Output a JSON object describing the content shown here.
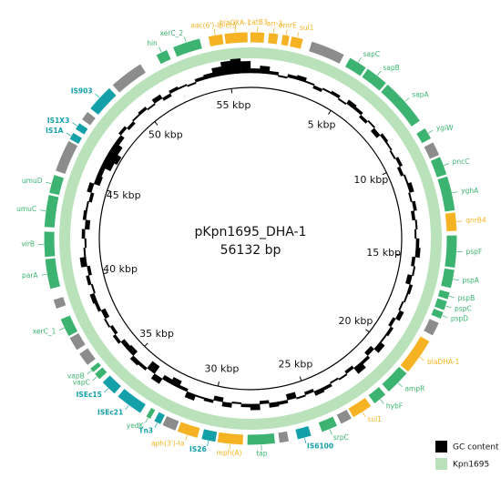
{
  "chart_data": {
    "type": "circular-map",
    "title": "pKpn1695_DHA-1",
    "subtitle": "56132 bp",
    "ring": {
      "lim": [
        0,
        56.132
      ],
      "ticks": [
        {
          "value": 5,
          "label": "5 kbp"
        },
        {
          "value": 10,
          "label": "10 kbp"
        },
        {
          "value": 15,
          "label": "15 kbp"
        },
        {
          "value": 20,
          "label": "20 kbp"
        },
        {
          "value": 25,
          "label": "25 kbp"
        },
        {
          "value": 30,
          "label": "30 kbp"
        },
        {
          "value": 35,
          "label": "35 kbp"
        },
        {
          "value": 40,
          "label": "40 kbp"
        },
        {
          "value": 45,
          "label": "45 kbp"
        },
        {
          "value": 50,
          "label": "50 kbp"
        },
        {
          "value": 55,
          "label": "55 kbp"
        }
      ]
    },
    "gc_content": {
      "name": "GC content",
      "color": "#000000",
      "lim": [
        -12,
        12
      ],
      "values": [
        3,
        5,
        2,
        -1,
        2,
        3,
        1,
        -2,
        1,
        2,
        -1,
        3,
        2,
        -2,
        1,
        -3,
        2,
        1,
        -1,
        2,
        -2,
        1,
        3,
        -1,
        2,
        -2,
        1,
        -1,
        2,
        3,
        -2,
        1,
        -3,
        2,
        1,
        -1,
        3,
        -2,
        2,
        1,
        4,
        -3,
        2,
        5,
        -2,
        1,
        -1,
        2,
        3,
        -2,
        1,
        -4,
        2,
        3,
        -2,
        4,
        2,
        -1,
        3,
        -3,
        2,
        1,
        4,
        -2,
        -5,
        -3,
        4,
        -6,
        2,
        3,
        -4,
        -3,
        2,
        -2,
        1,
        -3,
        2,
        3,
        -1,
        2,
        -2,
        4,
        1,
        -1,
        2,
        -3,
        2,
        1,
        -2,
        3,
        -4,
        -3,
        -7,
        -9,
        -6,
        -3,
        2,
        -2,
        1,
        2,
        -1,
        3,
        -2,
        2,
        1,
        -1,
        2,
        3,
        6,
        9,
        10,
        8
      ]
    },
    "backbone": {
      "name": "Kpn1695",
      "color": "#b9e2bb"
    },
    "genes": [
      {
        "label": "hin",
        "start": 51.9,
        "end": 52.4,
        "color": "#3cb371"
      },
      {
        "label": "xerC_2",
        "start": 52.7,
        "end": 53.9,
        "color": "#3cb371"
      },
      {
        "label": "aac(6')-Ib-cr5",
        "start": 54.3,
        "end": 54.9,
        "color": "#f5b324"
      },
      {
        "label": "blaOXA-1",
        "start": 55.0,
        "end": 56.0,
        "color": "#f5b324"
      },
      {
        "label": "catB3",
        "start": 0.0,
        "end": 0.6,
        "color": "#f5b324"
      },
      {
        "label": "arr-3",
        "start": 0.8,
        "end": 1.2,
        "color": "#f5b324"
      },
      {
        "label": "emrE",
        "start": 1.4,
        "end": 1.7,
        "color": "#f5b324"
      },
      {
        "label": "sul1",
        "start": 1.8,
        "end": 2.3,
        "color": "#f5b324"
      },
      {
        "label": null,
        "start": 2.7,
        "end": 4.2,
        "color": "#8c8c8c"
      },
      {
        "label": "sapC",
        "start": 4.5,
        "end": 5.3,
        "color": "#3cb371"
      },
      {
        "label": "sapB",
        "start": 5.4,
        "end": 6.4,
        "color": "#3cb371"
      },
      {
        "label": "sapA",
        "start": 6.5,
        "end": 8.6,
        "color": "#3cb371"
      },
      {
        "label": "ygiW",
        "start": 9.0,
        "end": 9.5,
        "color": "#3cb371"
      },
      {
        "label": null,
        "start": 9.7,
        "end": 10.3,
        "color": "#8c8c8c"
      },
      {
        "label": "pncC",
        "start": 10.4,
        "end": 11.2,
        "color": "#3cb371"
      },
      {
        "label": "yghA",
        "start": 11.3,
        "end": 12.8,
        "color": "#3cb371"
      },
      {
        "label": "qnrB4",
        "start": 12.9,
        "end": 13.7,
        "color": "#f5b324"
      },
      {
        "label": "pspF",
        "start": 13.9,
        "end": 15.3,
        "color": "#3cb371"
      },
      {
        "label": "pspA",
        "start": 15.4,
        "end": 16.2,
        "color": "#3cb371"
      },
      {
        "label": "pspB",
        "start": 16.4,
        "end": 16.7,
        "color": "#3cb371"
      },
      {
        "label": "pspC",
        "start": 16.8,
        "end": 17.2,
        "color": "#3cb371"
      },
      {
        "label": "pspD",
        "start": 17.3,
        "end": 17.6,
        "color": "#3cb371"
      },
      {
        "label": null,
        "start": 17.8,
        "end": 18.4,
        "color": "#8c8c8c"
      },
      {
        "label": "blaDHA-1",
        "start": 18.7,
        "end": 20.3,
        "color": "#f5b324"
      },
      {
        "label": "ampR",
        "start": 20.4,
        "end": 21.5,
        "color": "#3cb371"
      },
      {
        "label": "hybF",
        "start": 21.7,
        "end": 22.3,
        "color": "#3cb371"
      },
      {
        "label": "sul1",
        "start": 22.5,
        "end": 23.4,
        "color": "#f5b324"
      },
      {
        "label": null,
        "start": 23.5,
        "end": 24.0,
        "color": "#8c8c8c"
      },
      {
        "label": "srpC",
        "start": 24.2,
        "end": 24.9,
        "color": "#3cb371"
      },
      {
        "label": "IS6100",
        "start": 25.4,
        "end": 26.0,
        "color": "#13a0a8"
      },
      {
        "label": null,
        "start": 26.4,
        "end": 26.8,
        "color": "#8c8c8c"
      },
      {
        "label": "tap",
        "start": 27.0,
        "end": 28.2,
        "color": "#3cb371"
      },
      {
        "label": "mph(A)",
        "start": 28.4,
        "end": 29.5,
        "color": "#f5b324"
      },
      {
        "label": "IS26",
        "start": 29.6,
        "end": 30.2,
        "color": "#13a0a8"
      },
      {
        "label": "aph(3')-Ia",
        "start": 30.4,
        "end": 31.3,
        "color": "#f5b324"
      },
      {
        "label": null,
        "start": 31.4,
        "end": 32.0,
        "color": "#8c8c8c"
      },
      {
        "label": "Tn3",
        "start": 32.1,
        "end": 32.4,
        "color": "#13a0a8"
      },
      {
        "label": "yedK",
        "start": 32.6,
        "end": 32.8,
        "color": "#3cb371"
      },
      {
        "label": "ISEc21",
        "start": 33.1,
        "end": 34.3,
        "color": "#13a0a8"
      },
      {
        "label": "ISEc15",
        "start": 34.5,
        "end": 35.2,
        "color": "#13a0a8"
      },
      {
        "label": "vapC",
        "start": 35.4,
        "end": 35.7,
        "color": "#3cb371"
      },
      {
        "label": "vapB",
        "start": 35.8,
        "end": 36.0,
        "color": "#3cb371"
      },
      {
        "label": null,
        "start": 36.2,
        "end": 36.8,
        "color": "#8c8c8c"
      },
      {
        "label": null,
        "start": 37.0,
        "end": 37.6,
        "color": "#8c8c8c"
      },
      {
        "label": "xerC_1",
        "start": 37.7,
        "end": 38.5,
        "color": "#3cb371"
      },
      {
        "label": null,
        "start": 39.0,
        "end": 39.4,
        "color": "#8c8c8c"
      },
      {
        "label": "parA",
        "start": 39.9,
        "end": 41.2,
        "color": "#3cb371"
      },
      {
        "label": "virB",
        "start": 41.3,
        "end": 42.4,
        "color": "#3cb371"
      },
      {
        "label": "umuC",
        "start": 42.6,
        "end": 44.0,
        "color": "#3cb371"
      },
      {
        "label": "umuD",
        "start": 44.1,
        "end": 44.9,
        "color": "#3cb371"
      },
      {
        "label": null,
        "start": 45.1,
        "end": 46.5,
        "color": "#8c8c8c"
      },
      {
        "label": "IS1A",
        "start": 46.6,
        "end": 46.9,
        "color": "#13a0a8"
      },
      {
        "label": "IS1X3",
        "start": 47.1,
        "end": 47.4,
        "color": "#13a0a8"
      },
      {
        "label": null,
        "start": 47.6,
        "end": 48.0,
        "color": "#8c8c8c"
      },
      {
        "label": "IS903",
        "start": 48.2,
        "end": 49.4,
        "color": "#13a0a8"
      },
      {
        "label": null,
        "start": 49.6,
        "end": 51.1,
        "color": "#8c8c8c"
      }
    ]
  }
}
